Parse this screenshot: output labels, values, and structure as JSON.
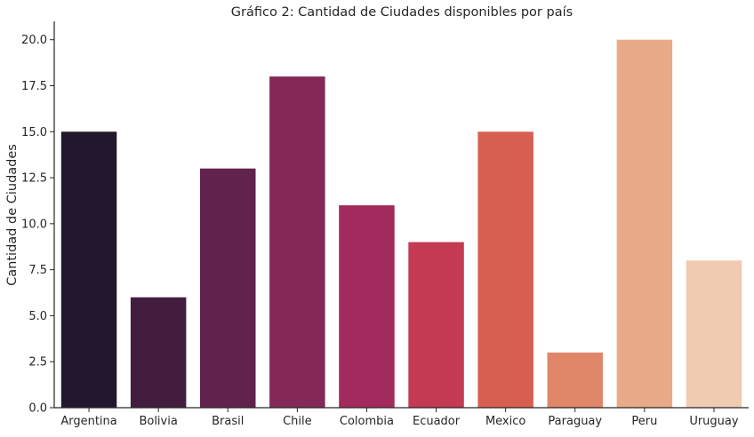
{
  "chart_data": {
    "type": "bar",
    "title": "Gráfico 2: Cantidad de Ciudades disponibles por país",
    "xlabel": "",
    "ylabel": "Cantidad de Ciudades",
    "categories": [
      "Argentina",
      "Bolivia",
      "Brasil",
      "Chile",
      "Colombia",
      "Ecuador",
      "Mexico",
      "Paraguay",
      "Peru",
      "Uruguay"
    ],
    "values": [
      15,
      6,
      13,
      18,
      11,
      9,
      15,
      3,
      20,
      8
    ],
    "colors": [
      "#23172d",
      "#421d3d",
      "#61234d",
      "#842858",
      "#a32a5c",
      "#c33a52",
      "#d75f52",
      "#e0876a",
      "#e8aa88",
      "#efcbb2"
    ],
    "ylim": [
      0,
      21
    ],
    "yticks": [
      0,
      2.5,
      5,
      7.5,
      10,
      12.5,
      15,
      17.5,
      20
    ],
    "ytick_labels": [
      "0.0",
      "2.5",
      "5.0",
      "7.5",
      "10.0",
      "12.5",
      "15.0",
      "17.5",
      "20.0"
    ],
    "grid": false,
    "legend": "none"
  }
}
